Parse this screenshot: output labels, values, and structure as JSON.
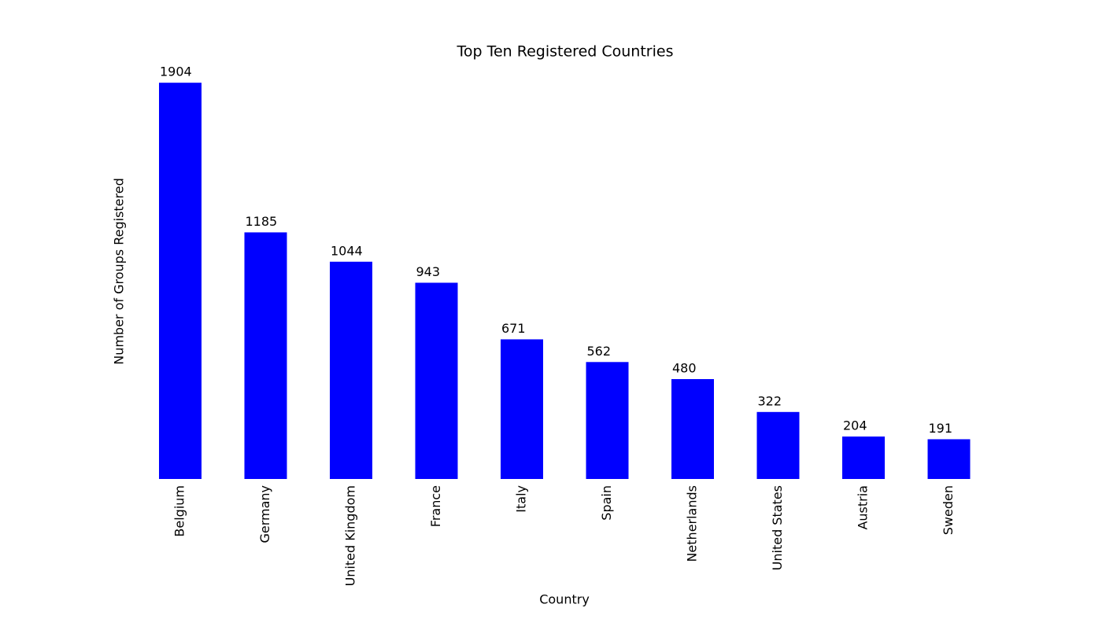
{
  "chart_data": {
    "type": "bar",
    "title": "Top Ten Registered Countries",
    "x_label": "Country",
    "y_label": "Number of Groups Registered",
    "categories": [
      "Belgium",
      "Germany",
      "United Kingdom",
      "France",
      "Italy",
      "Spain",
      "Netherlands",
      "United States",
      "Austria",
      "Sweden"
    ],
    "values": [
      1904,
      1185,
      1044,
      943,
      671,
      562,
      480,
      322,
      204,
      191
    ],
    "color": "#0000ff",
    "ylim": [
      0,
      1999.2
    ],
    "grid": false
  }
}
